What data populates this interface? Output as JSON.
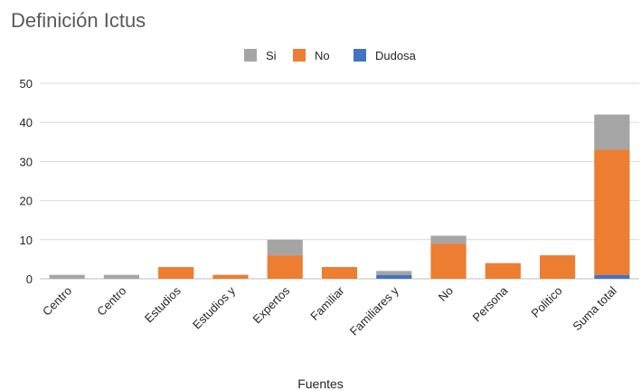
{
  "chart_data": {
    "type": "bar",
    "stacked": true,
    "title": "Definición Ictus",
    "xlabel": "Fuentes",
    "ylabel": "",
    "ylim": [
      0,
      50
    ],
    "yticks": [
      0,
      10,
      20,
      30,
      40,
      50
    ],
    "grid": true,
    "legend_position": "top",
    "categories": [
      "Centro",
      "Centro",
      "Estudios",
      "Estudios y",
      "Expertos",
      "Familiar",
      "Familiares y",
      "No",
      "Persona",
      "Politico",
      "Suma total"
    ],
    "series": [
      {
        "name": "Dudosa",
        "color": "#4472c4",
        "values": [
          0,
          0,
          0,
          0,
          0,
          0,
          1,
          0,
          0,
          0,
          1
        ]
      },
      {
        "name": "No",
        "color": "#ed7d31",
        "values": [
          0,
          0,
          3,
          1,
          6,
          3,
          0,
          9,
          4,
          6,
          32
        ]
      },
      {
        "name": "Si",
        "color": "#a5a5a5",
        "values": [
          1,
          1,
          0,
          0,
          4,
          0,
          1,
          2,
          0,
          0,
          9
        ]
      }
    ],
    "legend_order": [
      "Si",
      "No",
      "Dudosa"
    ]
  }
}
